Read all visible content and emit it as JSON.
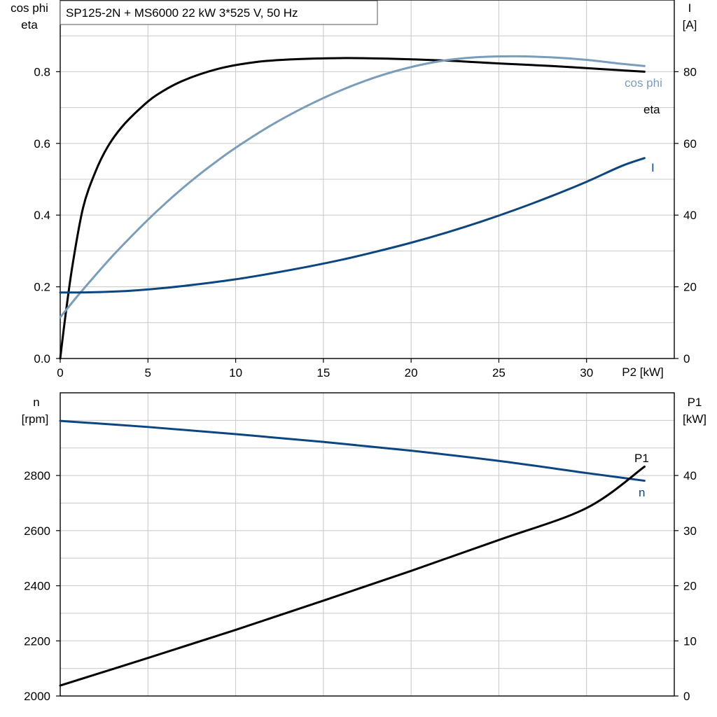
{
  "title": "SP125-2N + MS6000   22 kW   3*525 V, 50 Hz",
  "colors": {
    "eta": "#000000",
    "cosphi": "#7a9dbb",
    "current": "#0b4680",
    "speed": "#0b4680",
    "p1": "#000000",
    "grid": "#c8c8c8"
  },
  "chart_data": [
    {
      "type": "line",
      "x_ticks": [
        "0",
        "5",
        "10",
        "15",
        "20",
        "25",
        "30"
      ],
      "xlabel": "P2 [kW]",
      "xlim": [
        0,
        35
      ],
      "left_axis": {
        "label": [
          "cos phi",
          "eta"
        ],
        "ylim": [
          0,
          1.0
        ],
        "ticks": [
          "0.0",
          "0.2",
          "0.4",
          "0.6",
          "0.8"
        ]
      },
      "right_axis": {
        "label": [
          "I",
          "[A]"
        ],
        "ylim": [
          0,
          100
        ],
        "ticks": [
          "0",
          "20",
          "40",
          "60",
          "80"
        ]
      },
      "grid": true,
      "series": [
        {
          "key": "eta",
          "name": "eta",
          "axis": "left",
          "color": "#000000",
          "x": [
            0,
            0.3,
            0.7,
            1.3,
            2,
            2.7,
            3.5,
            4.5,
            5.5,
            7,
            9,
            11,
            13,
            16,
            19,
            22,
            25,
            28,
            31,
            33.3
          ],
          "y": [
            0,
            0.12,
            0.26,
            0.42,
            0.52,
            0.59,
            0.645,
            0.695,
            0.735,
            0.775,
            0.808,
            0.826,
            0.834,
            0.838,
            0.836,
            0.831,
            0.823,
            0.816,
            0.807,
            0.8
          ]
        },
        {
          "key": "cosphi",
          "name": "cos phi",
          "axis": "left",
          "color": "#7a9dbb",
          "x": [
            0,
            1,
            2,
            3,
            4,
            5,
            6,
            7,
            8,
            9,
            10,
            12,
            14,
            16,
            18,
            20,
            22,
            24,
            26,
            28,
            30,
            32,
            33.3
          ],
          "y": [
            0.115,
            0.175,
            0.232,
            0.287,
            0.338,
            0.387,
            0.433,
            0.476,
            0.516,
            0.553,
            0.588,
            0.65,
            0.703,
            0.748,
            0.785,
            0.813,
            0.832,
            0.841,
            0.843,
            0.84,
            0.833,
            0.822,
            0.816
          ]
        },
        {
          "key": "current",
          "name": "I",
          "axis": "right",
          "color": "#0b4680",
          "x": [
            0,
            2,
            4,
            6,
            8,
            10,
            12,
            14,
            16,
            18,
            20,
            22,
            24,
            26,
            28,
            30,
            32,
            33.3
          ],
          "y": [
            18.4,
            18.5,
            18.9,
            19.7,
            20.8,
            22.1,
            23.7,
            25.5,
            27.5,
            29.8,
            32.3,
            35.1,
            38.2,
            41.6,
            45.3,
            49.3,
            53.7,
            55.9
          ]
        }
      ]
    },
    {
      "type": "line",
      "x_ticks": [],
      "xlabel": "",
      "xlim": [
        0,
        35
      ],
      "left_axis": {
        "label": [
          "n",
          "[rpm]"
        ],
        "ylim": [
          2000,
          3100
        ],
        "ticks": [
          "2000",
          "2200",
          "2400",
          "2600",
          "2800"
        ]
      },
      "right_axis": {
        "label": [
          "P1",
          "[kW]"
        ],
        "ylim": [
          0,
          55
        ],
        "ticks": [
          "0",
          "10",
          "20",
          "30",
          "40"
        ]
      },
      "grid": true,
      "series": [
        {
          "key": "speed",
          "name": "n",
          "axis": "left",
          "color": "#0b4680",
          "x": [
            0,
            5,
            10,
            15,
            20,
            25,
            30,
            33.3
          ],
          "y": [
            2998,
            2976,
            2950,
            2922,
            2890,
            2853,
            2809,
            2781
          ]
        },
        {
          "key": "p1",
          "name": "P1",
          "axis": "right",
          "color": "#000000",
          "x": [
            0,
            5,
            10,
            15,
            20,
            25,
            30,
            33.3
          ],
          "y": [
            1.9,
            6.9,
            12.0,
            17.3,
            22.7,
            28.3,
            34.1,
            41.6
          ]
        }
      ]
    }
  ]
}
